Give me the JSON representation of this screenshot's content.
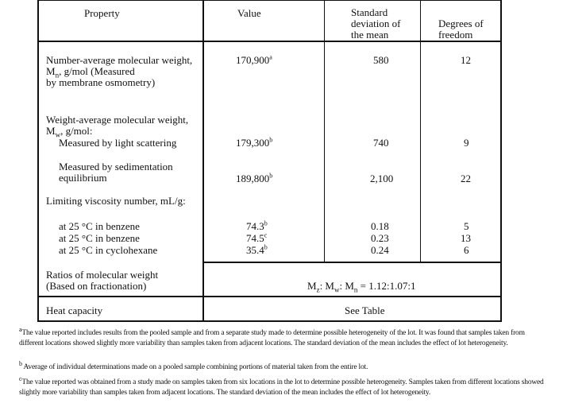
{
  "headers": {
    "property": "Property",
    "value": "Value",
    "std_dev": [
      "Standard",
      "deviation of",
      "the mean"
    ],
    "dof": [
      "Degrees of",
      "freedom"
    ]
  },
  "rows": {
    "mn": {
      "label": [
        "Number-average molecular weight,",
        "M",
        "n",
        ", g/mol (Measured",
        "by membrane osmometry)"
      ],
      "value": "170,900",
      "note": "a",
      "std": "580",
      "dof": "12"
    },
    "mw": {
      "label": [
        "Weight-average molecular weight,",
        "M",
        "w",
        ", g/mol:"
      ]
    },
    "ls": {
      "label": "Measured by light scattering",
      "value": "179,300",
      "note": "b",
      "std": "740",
      "dof": "9"
    },
    "sed": {
      "label": [
        "Measured by sedimentation",
        "equilibrium"
      ],
      "value": "189,800",
      "note": "b",
      "std": "2,100",
      "dof": "22"
    },
    "visc": {
      "label": "Limiting viscosity number, mL/g:"
    },
    "v1": {
      "label": "at 25 °C in benzene",
      "value": "74.3",
      "note": "b",
      "std": "0.18",
      "dof": "5"
    },
    "v2": {
      "label": "at 25 °C in benzene",
      "value": "74.5",
      "note": "c",
      "std": "0.23",
      "dof": "13"
    },
    "v3": {
      "label": "at 25 °C in cyclohexane",
      "value": "35.4",
      "note": "b",
      "std": "0.24",
      "dof": "6"
    },
    "ratio": {
      "label": [
        "Ratios of molecular weight",
        "(Based on fractionation)"
      ],
      "value": [
        "M",
        "z",
        ": M",
        "w",
        ": M",
        "n",
        " = 1.12:1.07:1"
      ]
    },
    "heat": {
      "label": "Heat capacity",
      "value": "See Table"
    }
  },
  "footnotes": [
    {
      "mark": "a",
      "text": "The value reported includes results from the pooled sample and from a separate study made to determine possible heterogeneity of the lot. It was found that samples taken from different locations showed slightly more variability than samples taken from adjacent locations. The standard deviation of the mean includes the effect of lot heterogeneity."
    },
    {
      "mark": "b",
      "text": "Average of individual determinations made on a pooled sample combining portions of material taken from the entire lot."
    },
    {
      "mark": "c",
      "text": "The value reported was obtained from a study made on samples taken from six locations in the lot to determine possible heterogeneity. Samples taken from different locations showed slightly more variability than samples taken from adjacent locations.  The standard deviation of the mean includes the effect of lot heterogeneity."
    }
  ]
}
